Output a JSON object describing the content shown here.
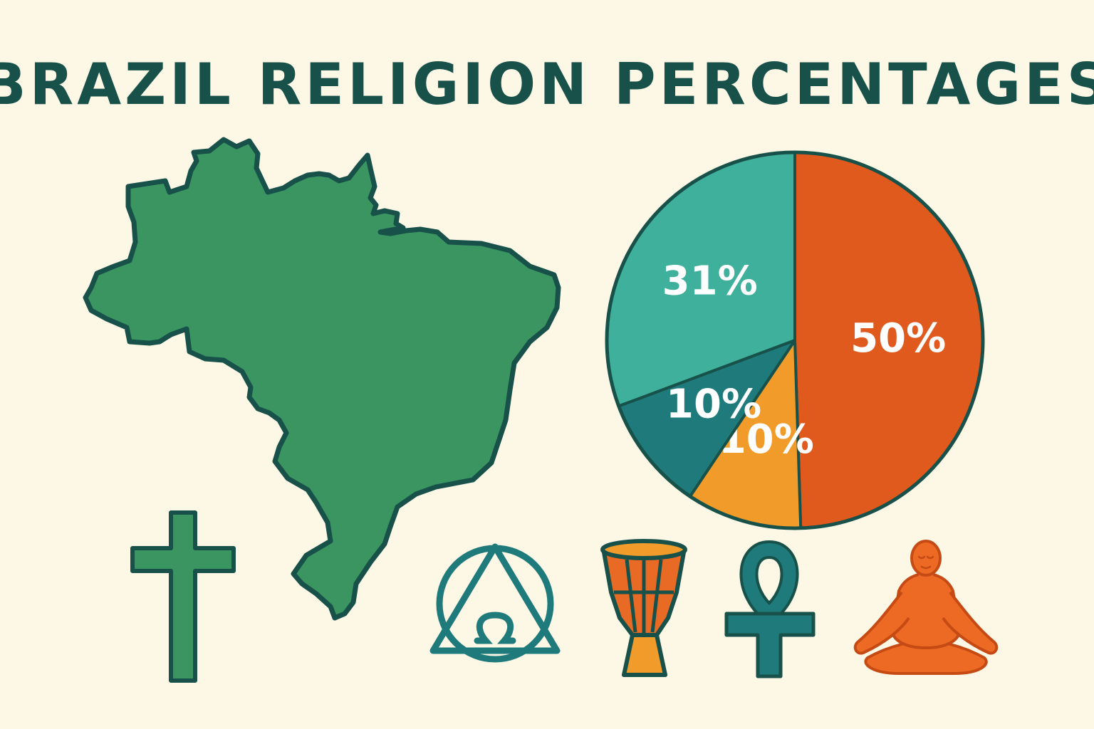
{
  "title": "BRAZIL RELIGION PERCENTAGES",
  "colors": {
    "background": "#fdf7e6",
    "outline": "#17514a",
    "map_fill": "#3a9560",
    "cross_fill": "#3a9560",
    "icon_teal": "#1f7b7b",
    "drum_orange": "#e86a24",
    "drum_base": "#f19c2a",
    "buddha_orange": "#ec6a24"
  },
  "chart_data": {
    "type": "pie",
    "title": "BRAZIL RELIGION PERCENTAGES",
    "slices": [
      {
        "label": "50%",
        "value": 50,
        "color": "#e05a1e"
      },
      {
        "label": "10%",
        "value": 10,
        "color": "#f19c2a"
      },
      {
        "label": "10%",
        "value": 10,
        "color": "#1f7b7b"
      },
      {
        "label": "31%",
        "value": 31,
        "color": "#3fb09b"
      }
    ],
    "start": "top",
    "direction": "clockwise"
  },
  "icons": [
    {
      "name": "latin-cross-icon"
    },
    {
      "name": "triangle-omega-circle-icon"
    },
    {
      "name": "djembe-drum-icon"
    },
    {
      "name": "ankh-icon"
    },
    {
      "name": "meditating-buddha-icon"
    }
  ]
}
